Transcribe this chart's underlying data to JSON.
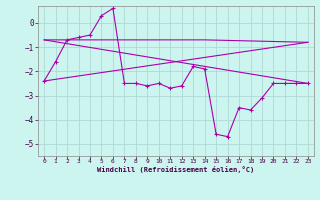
{
  "xlabel": "Windchill (Refroidissement éolien,°C)",
  "background_color": "#cdf5f0",
  "grid_color": "#b0d8d4",
  "line_color": "#aa00aa",
  "ylim": [
    -5.5,
    0.7
  ],
  "xlim": [
    -0.5,
    23.5
  ],
  "yticks": [
    0,
    -1,
    -2,
    -3,
    -4,
    -5
  ],
  "xticks": [
    0,
    1,
    2,
    3,
    4,
    5,
    6,
    7,
    8,
    9,
    10,
    11,
    12,
    13,
    14,
    15,
    16,
    17,
    18,
    19,
    20,
    21,
    22,
    23
  ],
  "series1_x": [
    0,
    1,
    2,
    3,
    4,
    5,
    6,
    7,
    8,
    9,
    10,
    11,
    12,
    13,
    14,
    15,
    16,
    17,
    18,
    19,
    20,
    21,
    22,
    23
  ],
  "series1_y": [
    -2.4,
    -1.6,
    -0.7,
    -0.6,
    -0.5,
    0.3,
    0.6,
    -2.5,
    -2.5,
    -2.6,
    -2.5,
    -2.7,
    -2.6,
    -1.8,
    -1.9,
    -4.6,
    -4.7,
    -3.5,
    -3.6,
    -3.1,
    -2.5,
    -2.5,
    -2.5,
    -2.5
  ],
  "series2_x": [
    0,
    6,
    14,
    23
  ],
  "series2_y": [
    -0.7,
    -0.7,
    -0.7,
    -0.8
  ],
  "series3_x": [
    0,
    23
  ],
  "series3_y": [
    -0.7,
    -2.5
  ],
  "series4_x": [
    0,
    23
  ],
  "series4_y": [
    -2.4,
    -0.8
  ]
}
